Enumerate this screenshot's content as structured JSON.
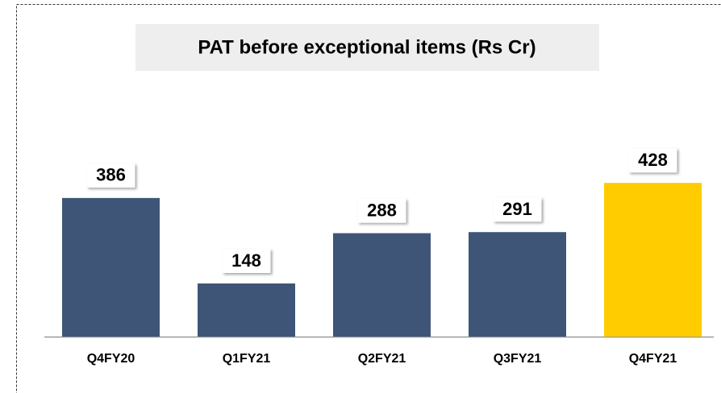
{
  "chart_data": {
    "type": "bar",
    "title": "PAT before exceptional items  (Rs Cr)",
    "categories": [
      "Q4FY20",
      "Q1FY21",
      "Q2FY21",
      "Q3FY21",
      "Q4FY21"
    ],
    "values": [
      386,
      148,
      288,
      291,
      428
    ],
    "colors": [
      "#3f5577",
      "#3f5577",
      "#3f5577",
      "#3f5577",
      "#ffcc00"
    ]
  }
}
